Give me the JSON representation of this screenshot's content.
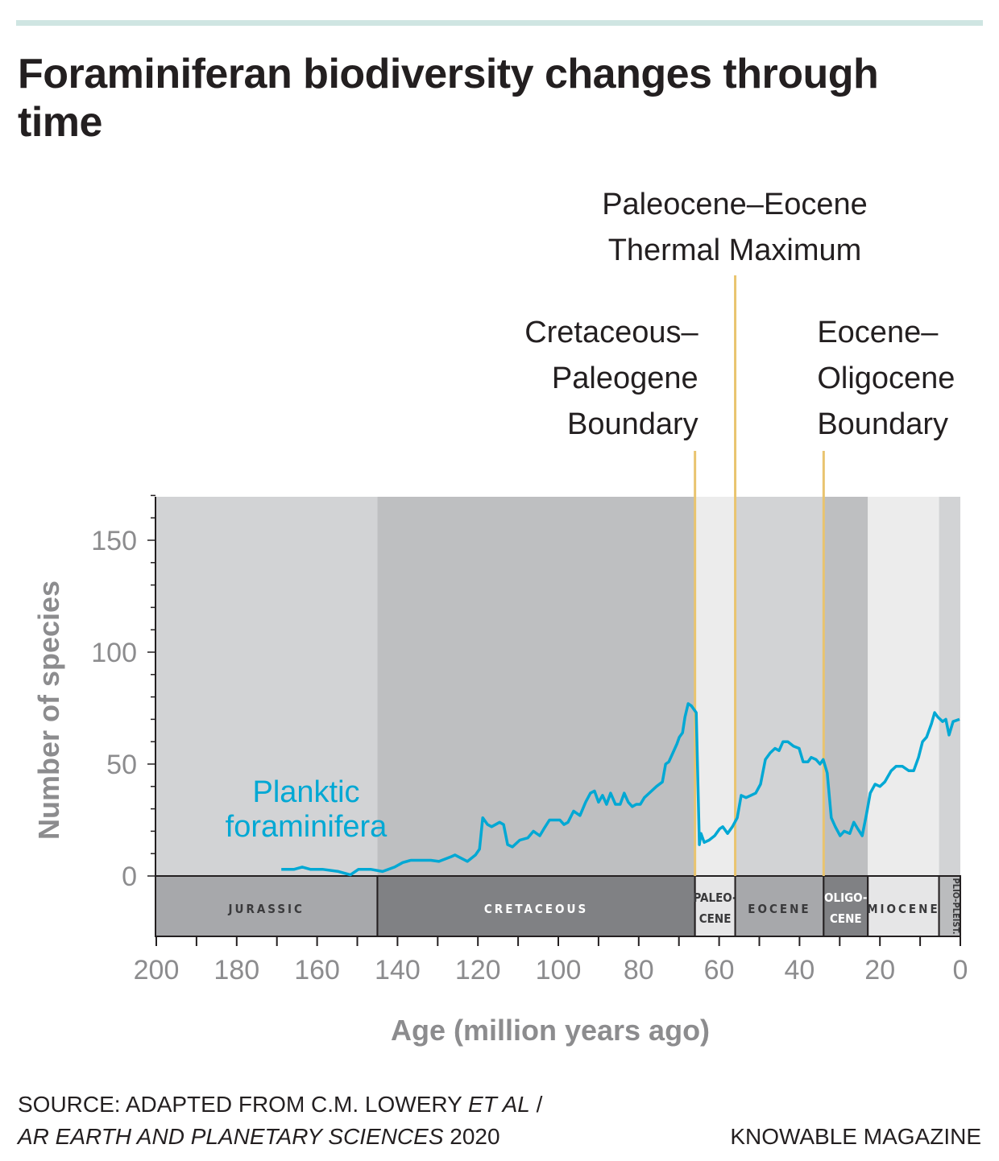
{
  "header": {
    "title": "Foraminiferan biodiversity changes through time"
  },
  "footer": {
    "source_line1": "SOURCE: ADAPTED FROM C.M. LOWERY ",
    "source_etal": "ET AL",
    "source_slash": " /",
    "source_journal": "AR EARTH AND PLANETARY SCIENCES",
    "source_year": " 2020",
    "credit": "KNOWABLE MAGAZINE"
  },
  "colors": {
    "line": "#00a8d4",
    "event": "#e9c46f",
    "axis_text": "#8c8c8e",
    "topbar": "#cfe5e2"
  },
  "chart_data": {
    "type": "line",
    "xlabel": "Age (million years ago)",
    "ylabel": "Number of species",
    "xlim": [
      200,
      0
    ],
    "ylim": [
      0,
      170
    ],
    "x_ticks": [
      200,
      180,
      160,
      140,
      120,
      100,
      80,
      60,
      40,
      20,
      0
    ],
    "y_ticks": [
      0,
      50,
      100,
      150
    ],
    "grid": false,
    "series": [
      {
        "name": "Planktic foraminifera",
        "color": "#00a8d4",
        "x": [
          168.9,
          165.7,
          163.7,
          161.7,
          158.7,
          154.7,
          151.7,
          149.7,
          146.7,
          143.7,
          140.7,
          138.7,
          136.7,
          131.7,
          129.7,
          126.7,
          125.7,
          122.6,
          120.6,
          119.6,
          118.8,
          117.6,
          116.6,
          114.6,
          113.6,
          112.6,
          111.4,
          109.6,
          107.6,
          106.2,
          104.6,
          103.6,
          102.2,
          99.6,
          98.6,
          97.6,
          96.2,
          94.6,
          93.2,
          92,
          91,
          90,
          89,
          88,
          87,
          85.8,
          84.6,
          83.6,
          82.6,
          81.6,
          80.6,
          79.6,
          78.6,
          77.4,
          75.6,
          74.1,
          73.3,
          72.5,
          71.5,
          70.5,
          69.9,
          69.1,
          68.5,
          67.7,
          66.9,
          65.7,
          64.9,
          64.5,
          63.7,
          62.5,
          61.1,
          59.9,
          59.1,
          57.9,
          56.7,
          55.5,
          54.5,
          53.3,
          52.1,
          50.9,
          49.7,
          48.5,
          47.3,
          46.1,
          45.1,
          44.1,
          42.9,
          41.5,
          40.1,
          39.1,
          37.9,
          37.1,
          35.9,
          34.9,
          34.1,
          33.1,
          32.1,
          31.1,
          29.9,
          28.9,
          27.5,
          26.5,
          25.5,
          24.4,
          23.4,
          22.4,
          21.2,
          20,
          18.8,
          17.2,
          16,
          14.4,
          12.8,
          11.6,
          10.4,
          9.4,
          8.4,
          7.2,
          6.4,
          5.6,
          4.4,
          3.6,
          2.8,
          1.8,
          0.2
        ],
        "y": [
          3,
          3,
          4,
          3,
          3,
          2,
          0.5,
          3,
          3,
          2,
          4,
          6,
          7,
          7,
          6.5,
          8.6,
          9.4,
          6.5,
          9.4,
          12,
          26,
          23,
          22,
          24,
          23,
          14,
          13,
          16,
          17,
          20,
          18,
          21,
          25,
          25,
          23,
          24,
          29,
          27,
          33,
          37,
          38,
          33,
          36,
          32,
          37,
          32,
          32,
          37,
          33,
          31,
          32,
          32,
          35,
          37,
          40,
          42,
          50,
          51,
          55,
          59,
          62,
          64,
          71,
          77,
          76,
          73,
          14,
          19,
          15,
          16,
          18,
          21,
          22,
          19,
          22,
          26,
          36,
          35,
          36,
          37,
          41,
          52,
          55,
          57,
          56,
          60,
          60,
          58,
          57,
          51,
          51,
          53,
          52,
          50,
          52,
          46,
          26,
          22,
          18,
          20,
          19,
          24,
          21,
          18,
          27,
          37,
          41,
          40,
          42,
          47,
          49,
          49,
          47,
          47,
          53,
          60,
          62,
          68,
          73,
          71,
          69,
          70,
          63,
          69,
          70
        ]
      }
    ],
    "periods": [
      {
        "label": "JURASSIC",
        "start": 201,
        "end": 145,
        "band": "#d2d3d5",
        "box": "#a7a8ab",
        "text": "#3a3a3c"
      },
      {
        "label": "CRETACEOUS",
        "start": 145,
        "end": 66,
        "band": "#bebfc1",
        "box": "#808184",
        "text": "#ffffff"
      },
      {
        "label": "PALEO-",
        "label2": "CENE",
        "start": 66,
        "end": 56,
        "band": "#ececec",
        "box": "#e6e6e7",
        "text": "#3a3a3c"
      },
      {
        "label": "EOCENE",
        "start": 56,
        "end": 34,
        "band": "#d2d3d5",
        "box": "#a7a8ab",
        "text": "#3a3a3c"
      },
      {
        "label": "OLIGO-",
        "label2": "CENE",
        "start": 34,
        "end": 23,
        "band": "#bebfc1",
        "box": "#808184",
        "text": "#ffffff"
      },
      {
        "label": "MIOCENE",
        "start": 23,
        "end": 5.3,
        "band": "#ececec",
        "box": "#e6e6e7",
        "text": "#3a3a3c"
      },
      {
        "label": "PLIO-PLEIST.",
        "start": 5.3,
        "end": 0,
        "band": "#d2d3d5",
        "box": "#bbbcbe",
        "text": "#3a3a3c",
        "vertical": true
      }
    ],
    "events": [
      {
        "age": 66,
        "lines": [
          "Cretaceous–",
          "Paleogene",
          "Boundary"
        ],
        "align": "right"
      },
      {
        "age": 56,
        "lines": [
          "Paleocene–Eocene",
          "Thermal Maximum"
        ],
        "align": "center"
      },
      {
        "age": 34,
        "lines": [
          "Eocene–",
          "Oligocene",
          "Boundary"
        ],
        "align": "left"
      }
    ],
    "annotations": [
      {
        "lines": [
          "Planktic",
          "foraminifera"
        ]
      }
    ]
  }
}
